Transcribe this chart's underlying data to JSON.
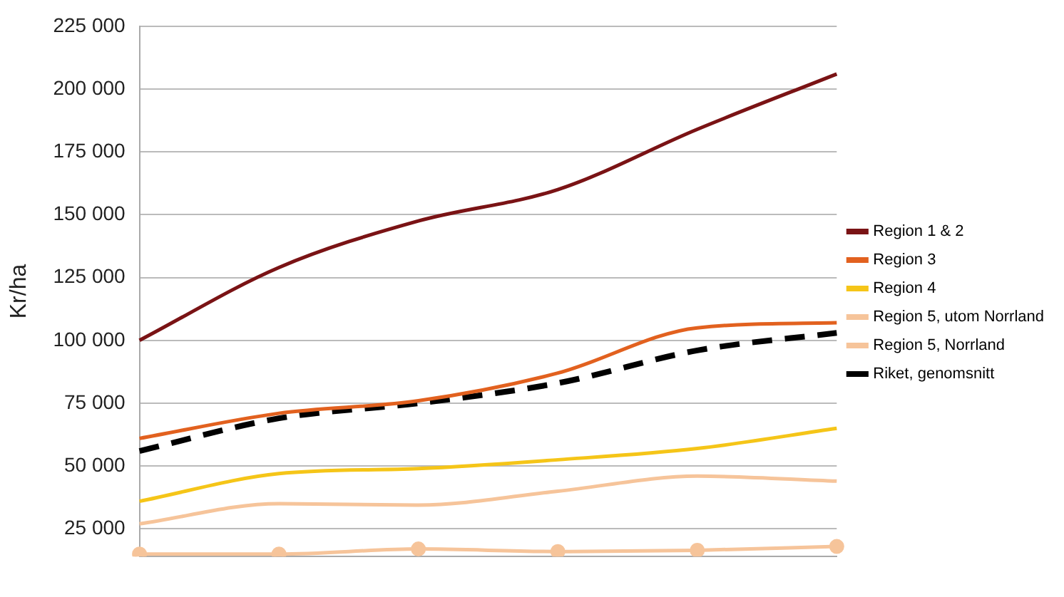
{
  "chart_data": {
    "type": "line",
    "ylabel": "Kr/ha",
    "categories": [
      null,
      null,
      null,
      null,
      null,
      null
    ],
    "series": [
      {
        "name": "Region 1 & 2",
        "color": "#7a1315",
        "values": [
          100000,
          129000,
          147500,
          160000,
          184000,
          206000
        ]
      },
      {
        "name": "Region 3",
        "color": "#e2611f",
        "values": [
          61000,
          71000,
          76000,
          87000,
          105000,
          107000
        ]
      },
      {
        "name": "Region 4",
        "color": "#f5c518",
        "values": [
          36000,
          47000,
          49000,
          52500,
          57000,
          65000
        ]
      },
      {
        "name": "Region 5, utom Norrland",
        "color": "#f6c49a",
        "values": [
          27000,
          35000,
          34500,
          40000,
          46000,
          44000
        ]
      },
      {
        "name": "Region 5, Norrland",
        "color": "#f6c49a",
        "marker": "circle",
        "values": [
          15000,
          15000,
          17000,
          16000,
          16500,
          18000
        ]
      },
      {
        "name": "Riket, genomsnitt",
        "color": "#000000",
        "line_style": "dashed",
        "values": [
          56000,
          69000,
          75000,
          83000,
          96000,
          103000
        ]
      }
    ],
    "ylim": [
      14000,
      225000
    ],
    "yticks": [
      {
        "value": 25000,
        "label": "25 000"
      },
      {
        "value": 50000,
        "label": "50 000"
      },
      {
        "value": 75000,
        "label": "75 000"
      },
      {
        "value": 100000,
        "label": "100 000"
      },
      {
        "value": 125000,
        "label": "125 000"
      },
      {
        "value": 150000,
        "label": "150 000"
      },
      {
        "value": 175000,
        "label": "175 000"
      },
      {
        "value": 200000,
        "label": "200 000"
      },
      {
        "value": 225000,
        "label": "225 000"
      }
    ],
    "grid": "y",
    "legend": "right",
    "marker": "none",
    "line_style": "solid"
  }
}
